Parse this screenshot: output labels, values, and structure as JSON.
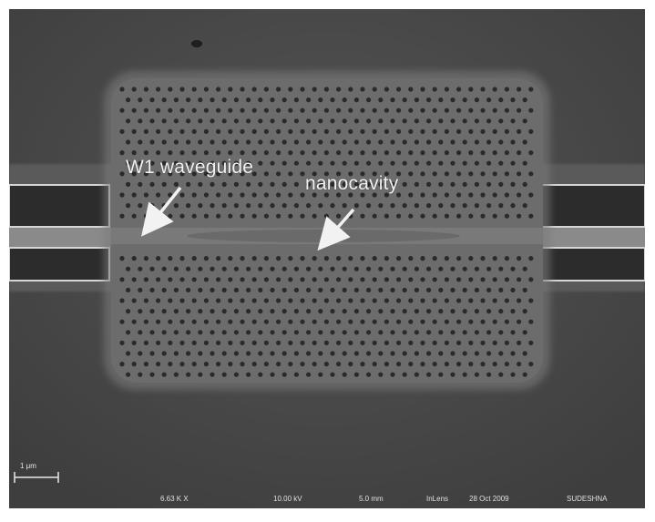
{
  "micrograph": {
    "labels": {
      "waveguide": "W1 waveguide",
      "nanocavity": "nanocavity"
    },
    "scale_bar": {
      "label": "1 μm"
    },
    "info_bar": {
      "magnification": "6.63 K X",
      "voltage": "10.00 kV",
      "working_distance": "5.0 mm",
      "detector": "InLens",
      "date": "28 Oct 2009",
      "operator": "SUDESHNA"
    },
    "colors": {
      "substrate": "#4a4a4a",
      "crystal": "#6c6c6c",
      "holes": "#2a2a2a",
      "waveguide": "#7b7b7b",
      "bar_edge": "#d6d6d6"
    }
  }
}
